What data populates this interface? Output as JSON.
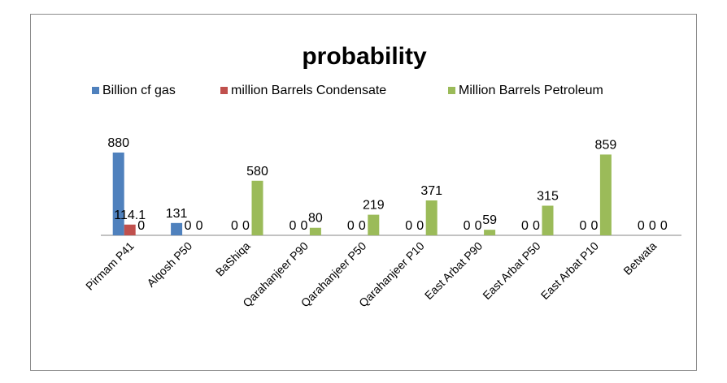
{
  "chart_data": {
    "type": "bar",
    "title": "probability",
    "xlabel": "",
    "ylabel": "",
    "grid": false,
    "legend_position": "top",
    "categories": [
      "Pirmam P41",
      "Alqosh P50",
      "BaShiqa",
      "Qarahanjeer  P90",
      "Qarahanjeer  P50",
      "Qarahanjeer  P10",
      "East Arbat P90",
      "East Arbat P50",
      "East Arbat P10",
      "Betwata"
    ],
    "series": [
      {
        "name": "Billion cf gas",
        "color": "#4f81bd",
        "values": [
          880,
          131,
          0,
          0,
          0,
          0,
          0,
          0,
          0,
          0
        ],
        "labels": [
          "880",
          "131",
          "0",
          "0",
          "0",
          "0",
          "0",
          "0",
          "0",
          "0"
        ]
      },
      {
        "name": "million Barrels Condensate",
        "color": "#c0504d",
        "values": [
          114.1,
          0,
          0,
          0,
          0,
          0,
          0,
          0,
          0,
          0
        ],
        "labels": [
          "114.1",
          "0",
          "0",
          "0",
          "0",
          "0",
          "0",
          "0",
          "0",
          "0"
        ]
      },
      {
        "name": "Million Barrels Petroleum",
        "color": "#9bbb59",
        "values": [
          0,
          0,
          580,
          80,
          219,
          371,
          59,
          315,
          859,
          0
        ],
        "labels": [
          "0",
          "0",
          "580",
          "80",
          "219",
          "371",
          "59",
          "315",
          "859",
          "0"
        ]
      }
    ],
    "ylim": [
      0,
      900
    ]
  }
}
